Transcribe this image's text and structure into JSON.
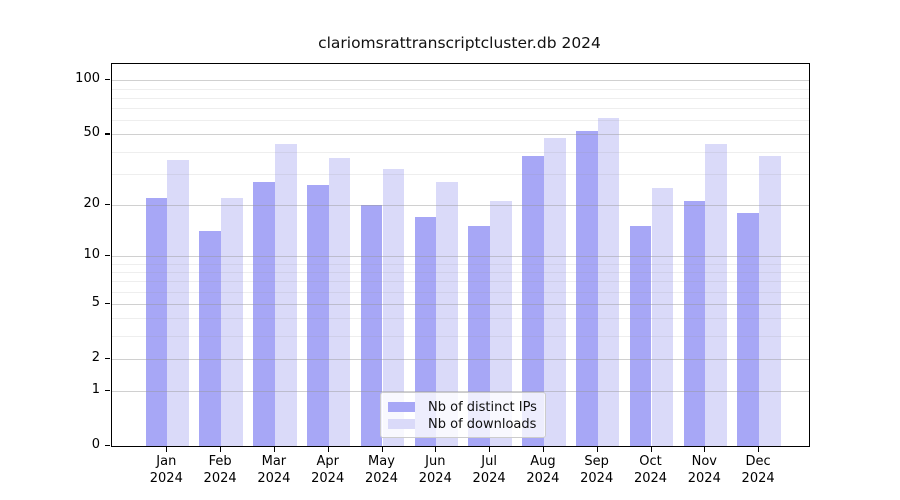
{
  "title": "clariomsrattranscriptcluster.db 2024",
  "chart_data": {
    "type": "bar",
    "title": "clariomsrattranscriptcluster.db 2024",
    "y_scale": "log10(1+x)",
    "grid": true,
    "categories": [
      "Jan",
      "Feb",
      "Mar",
      "Apr",
      "May",
      "Jun",
      "Jul",
      "Aug",
      "Sep",
      "Oct",
      "Nov",
      "Dec"
    ],
    "x_tick_year": "2024",
    "series": [
      {
        "name": "Nb of distinct IPs",
        "color": "#a7a7f6",
        "values": [
          22,
          14,
          27,
          26,
          20,
          17,
          15,
          38,
          52,
          15,
          21,
          18
        ]
      },
      {
        "name": "Nb of downloads",
        "color": "#dadaf9",
        "values": [
          36,
          22,
          44,
          37,
          32,
          27,
          21,
          48,
          62,
          25,
          44,
          38
        ]
      }
    ],
    "y_axis": {
      "ticks": [
        0,
        1,
        2,
        5,
        10,
        20,
        50,
        100
      ],
      "minor_gridlines": [
        3,
        4,
        6,
        7,
        8,
        9,
        30,
        40,
        60,
        70,
        80,
        90
      ],
      "max": 123
    },
    "legend": {
      "position": "bottom-center",
      "entries": [
        "Nb of distinct IPs",
        "Nb of downloads"
      ]
    },
    "colors": {
      "major_grid": "#d9d9d9",
      "minor_grid": "#ededed",
      "spine": "#000000",
      "text": "#000000"
    }
  }
}
